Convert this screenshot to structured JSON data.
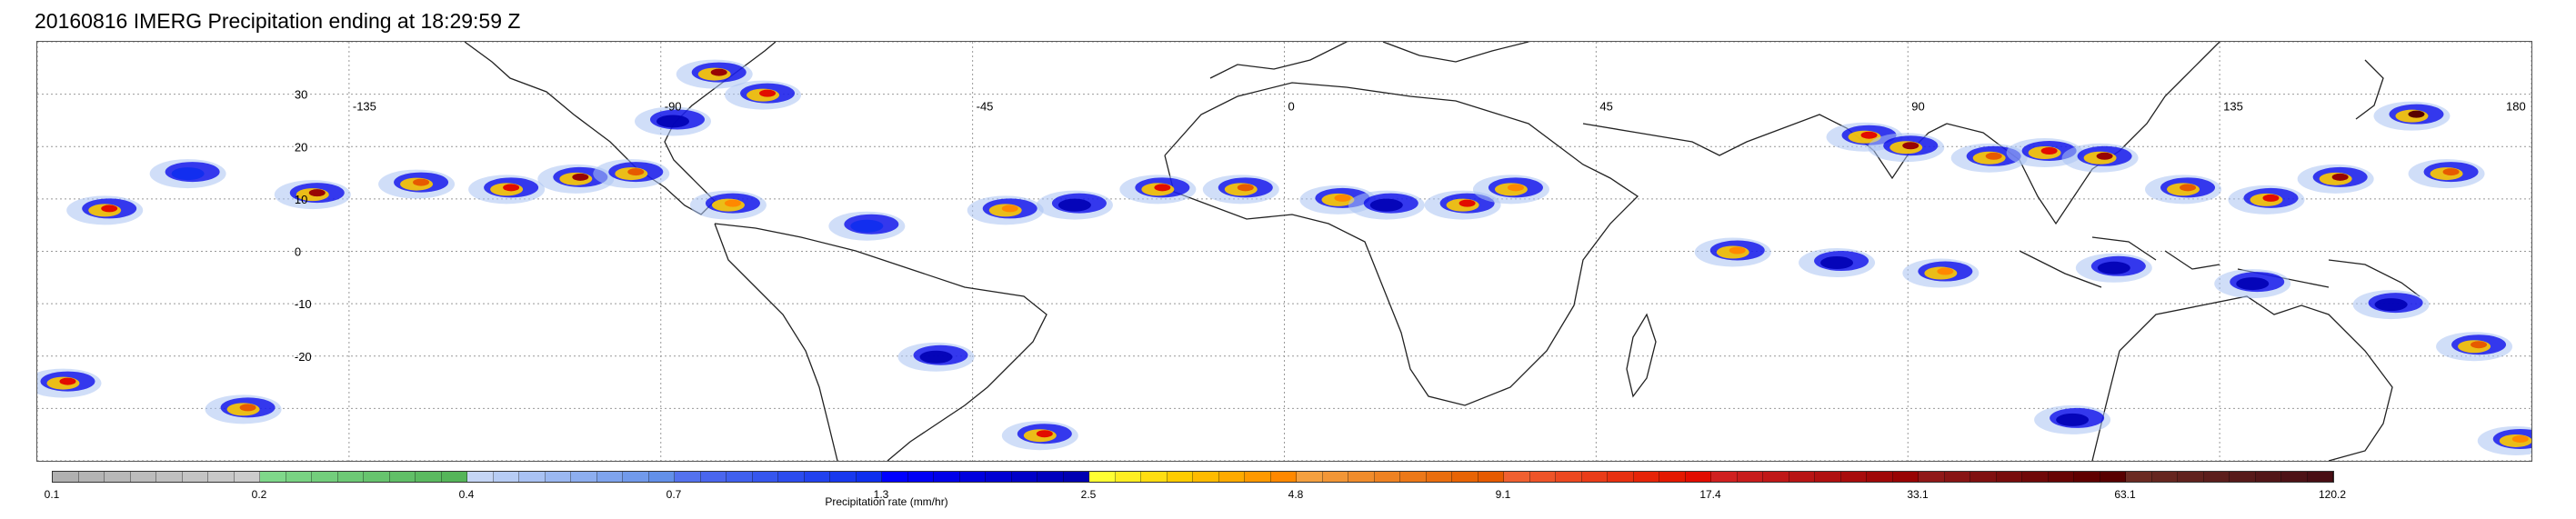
{
  "title": "20160816 IMERG Precipitation ending at 18:29:59 Z",
  "map": {
    "projection": "cylindrical equidistant",
    "lon_range": [
      -180,
      180
    ],
    "lat_range": [
      -40,
      40
    ],
    "lon_labels": [
      {
        "value": -135,
        "text": "-135"
      },
      {
        "value": -90,
        "text": "-90"
      },
      {
        "value": -45,
        "text": "-45"
      },
      {
        "value": 0,
        "text": "0"
      },
      {
        "value": 45,
        "text": "45"
      },
      {
        "value": 90,
        "text": "90"
      },
      {
        "value": 135,
        "text": "135"
      },
      {
        "value": 180,
        "text": "180"
      }
    ],
    "lat_labels": [
      {
        "value": 30,
        "text": "30"
      },
      {
        "value": 20,
        "text": "20"
      },
      {
        "value": 10,
        "text": "10"
      },
      {
        "value": 0,
        "text": "0"
      },
      {
        "value": -10,
        "text": "-10"
      },
      {
        "value": -20,
        "text": "-20"
      }
    ],
    "gridlines": true,
    "precip_cells": [
      {
        "lon": -170,
        "lat": 8,
        "rate": 17.4
      },
      {
        "lon": -158,
        "lat": 15,
        "rate": 1.3
      },
      {
        "lon": -140,
        "lat": 11,
        "rate": 33.1
      },
      {
        "lon": -125,
        "lat": 13,
        "rate": 9.1
      },
      {
        "lon": -112,
        "lat": 12,
        "rate": 17.4
      },
      {
        "lon": -102,
        "lat": 14,
        "rate": 33.1
      },
      {
        "lon": -94,
        "lat": 15,
        "rate": 9.1
      },
      {
        "lon": -82,
        "lat": 34,
        "rate": 33.1
      },
      {
        "lon": -75,
        "lat": 30,
        "rate": 17.4
      },
      {
        "lon": -88,
        "lat": 25,
        "rate": 2.5
      },
      {
        "lon": -80,
        "lat": 9,
        "rate": 4.8
      },
      {
        "lon": -60,
        "lat": 5,
        "rate": 1.3
      },
      {
        "lon": -40,
        "lat": 8,
        "rate": 4.8
      },
      {
        "lon": -30,
        "lat": 9,
        "rate": 2.5
      },
      {
        "lon": -18,
        "lat": 12,
        "rate": 17.4
      },
      {
        "lon": -6,
        "lat": 12,
        "rate": 9.1
      },
      {
        "lon": 8,
        "lat": 10,
        "rate": 4.8
      },
      {
        "lon": 15,
        "lat": 9,
        "rate": 2.5
      },
      {
        "lon": 26,
        "lat": 9,
        "rate": 17.4
      },
      {
        "lon": 33,
        "lat": 12,
        "rate": 4.8
      },
      {
        "lon": 84,
        "lat": 22,
        "rate": 17.4
      },
      {
        "lon": 90,
        "lat": 20,
        "rate": 33.1
      },
      {
        "lon": 102,
        "lat": 18,
        "rate": 9.1
      },
      {
        "lon": 110,
        "lat": 19,
        "rate": 17.4
      },
      {
        "lon": 118,
        "lat": 18,
        "rate": 33.1
      },
      {
        "lon": 130,
        "lat": 12,
        "rate": 9.1
      },
      {
        "lon": 142,
        "lat": 10,
        "rate": 17.4
      },
      {
        "lon": 152,
        "lat": 14,
        "rate": 33.1
      },
      {
        "lon": 163,
        "lat": 26,
        "rate": 63.1
      },
      {
        "lon": 168,
        "lat": 15,
        "rate": 9.1
      },
      {
        "lon": 65,
        "lat": 0,
        "rate": 4.8
      },
      {
        "lon": 80,
        "lat": -2,
        "rate": 2.5
      },
      {
        "lon": 95,
        "lat": -4,
        "rate": 4.8
      },
      {
        "lon": 120,
        "lat": -3,
        "rate": 2.5
      },
      {
        "lon": 140,
        "lat": -6,
        "rate": 2.5
      },
      {
        "lon": 160,
        "lat": -10,
        "rate": 2.5
      },
      {
        "lon": 172,
        "lat": -18,
        "rate": 9.1
      },
      {
        "lon": -176,
        "lat": -25,
        "rate": 17.4
      },
      {
        "lon": -150,
        "lat": -30,
        "rate": 9.1
      },
      {
        "lon": -35,
        "lat": -35,
        "rate": 17.4
      },
      {
        "lon": -50,
        "lat": -20,
        "rate": 2.5
      },
      {
        "lon": 114,
        "lat": -32,
        "rate": 2.5
      },
      {
        "lon": 178,
        "lat": -36,
        "rate": 4.8
      }
    ]
  },
  "colorbar": {
    "title": "Precipitation rate (mm/hr)",
    "labels": [
      "0.1",
      "0.2",
      "0.4",
      "0.7",
      "1.3",
      "2.5",
      "4.8",
      "9.1",
      "17.4",
      "33.1",
      "63.1",
      "120.2"
    ],
    "groups": [
      {
        "colors": [
          "#b0b0b0",
          "#b4b4b4",
          "#b8b8b8",
          "#bcbcbc",
          "#c0c0c0",
          "#c4c4c4",
          "#c8c8c8",
          "#cccccc"
        ]
      },
      {
        "colors": [
          "#7fd88a",
          "#79d383",
          "#73ce7c",
          "#6dc975",
          "#67c46e",
          "#61bf67",
          "#5bba60",
          "#55b559"
        ]
      },
      {
        "colors": [
          "#c5d5f5",
          "#b7ccf4",
          "#a9c2f3",
          "#9bb8f1",
          "#8daeef",
          "#7fa4ed",
          "#719aeb",
          "#6390e9"
        ]
      },
      {
        "colors": [
          "#5472ee",
          "#4a66ee",
          "#4060ee",
          "#3656ee",
          "#2c4cee",
          "#2242ee",
          "#1838ee",
          "#0e2eee"
        ]
      },
      {
        "colors": [
          "#0000ff",
          "#0000f4",
          "#0000e9",
          "#0000de",
          "#0000d3",
          "#0000c8",
          "#0000bd",
          "#0000b2"
        ]
      },
      {
        "colors": [
          "#ffff33",
          "#ffee22",
          "#ffdd11",
          "#ffcc00",
          "#ffbb00",
          "#ffaa00",
          "#ff9900",
          "#ff8800"
        ]
      },
      {
        "colors": [
          "#f4a040",
          "#f29636",
          "#f08c2c",
          "#ee8222",
          "#ec7818",
          "#ea6e0e",
          "#e86404",
          "#e65a00"
        ]
      },
      {
        "colors": [
          "#f06030",
          "#ee5428",
          "#ec4820",
          "#ea3c18",
          "#e83010",
          "#e62408",
          "#e41800",
          "#e20c00"
        ]
      },
      {
        "colors": [
          "#d02020",
          "#c81c1c",
          "#c01818",
          "#b81414",
          "#b01010",
          "#a80c0c",
          "#a00808",
          "#980404"
        ]
      },
      {
        "colors": [
          "#901818",
          "#881414",
          "#801010",
          "#780c0c",
          "#700808",
          "#680404",
          "#600000",
          "#580000"
        ]
      },
      {
        "colors": [
          "#6b2a22",
          "#662620",
          "#61221e",
          "#5c1e1c",
          "#571a1a",
          "#521618",
          "#4d1216",
          "#480e14"
        ]
      }
    ]
  }
}
